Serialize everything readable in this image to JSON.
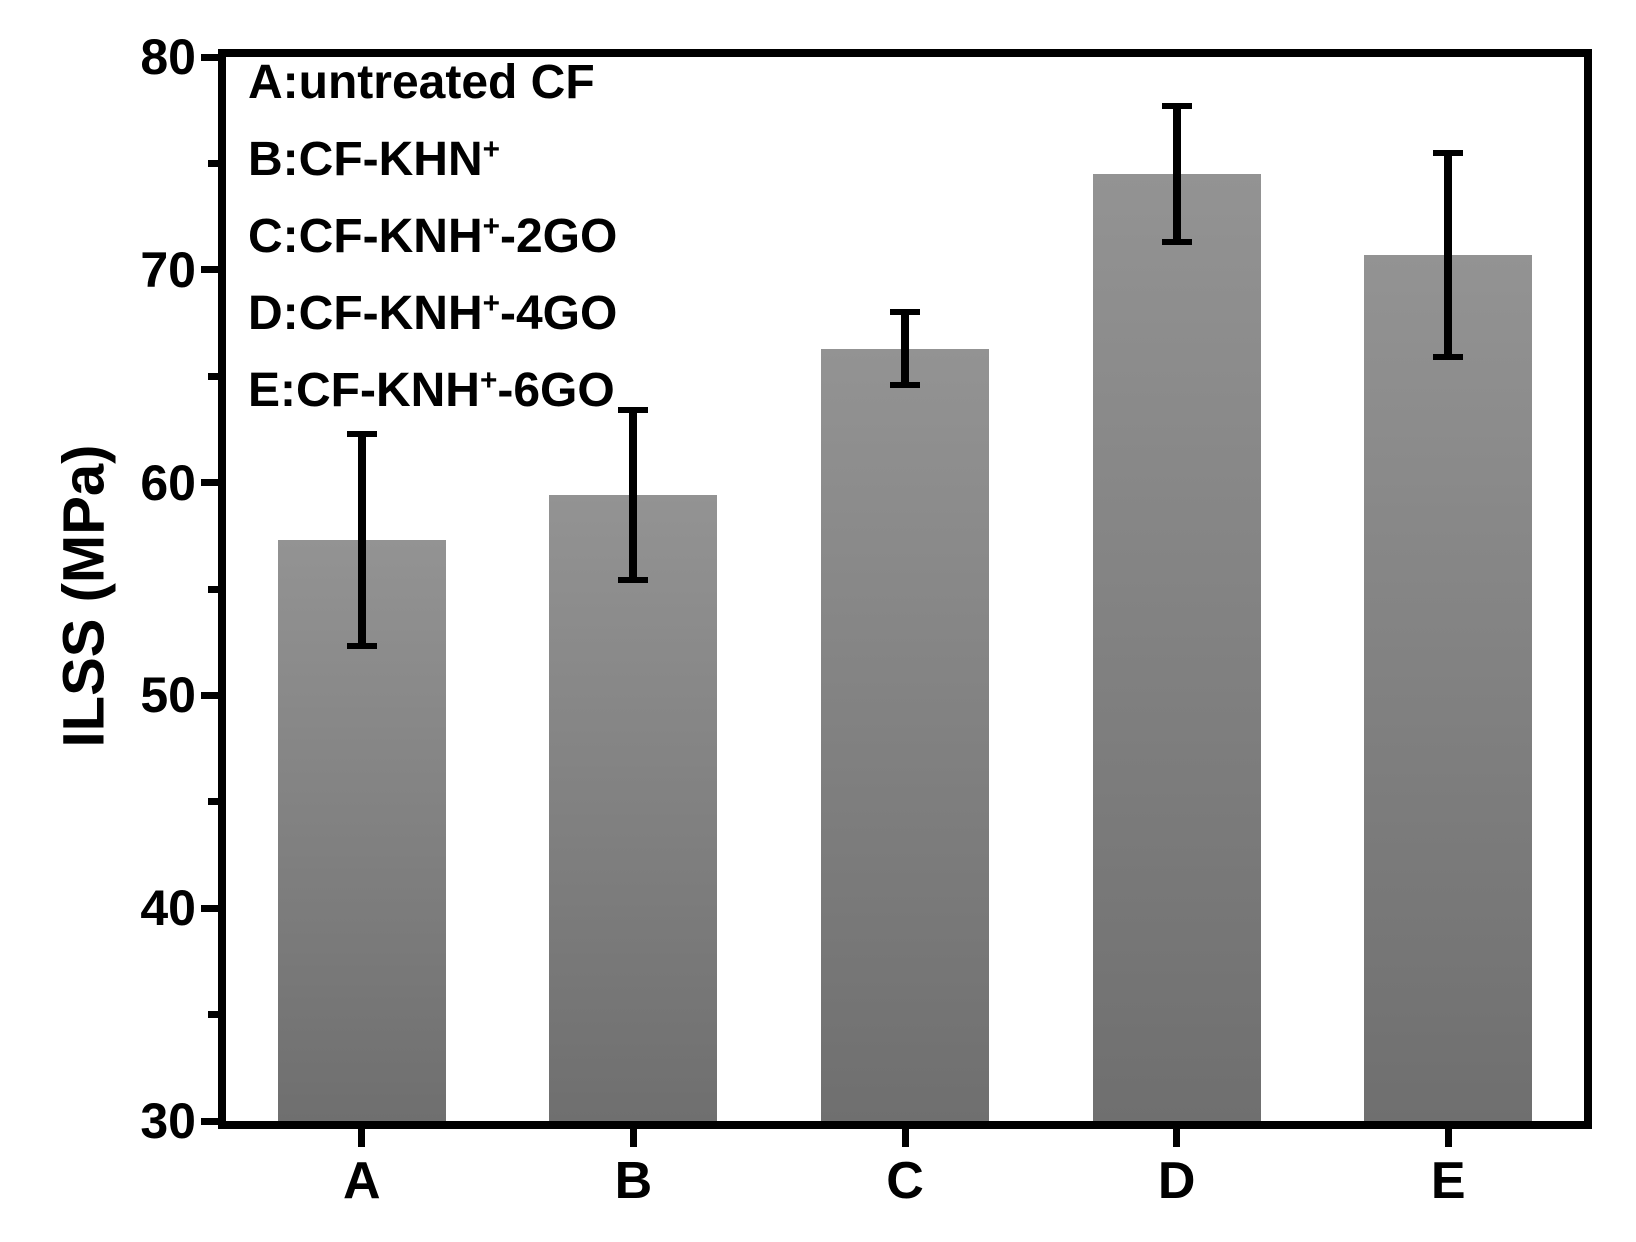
{
  "chart_data": {
    "type": "bar",
    "title": "",
    "xlabel": "",
    "ylabel": "ILSS (MPa)",
    "categories": [
      "A",
      "B",
      "C",
      "D",
      "E"
    ],
    "values": [
      57.3,
      59.4,
      66.3,
      74.5,
      70.7
    ],
    "errors": [
      5.0,
      4.0,
      1.7,
      3.2,
      4.8
    ],
    "ylim": [
      30,
      80
    ],
    "ytick_major_step": 10,
    "ytick_minor_step": 5,
    "ytick_labels": [
      "30",
      "40",
      "50",
      "60",
      "70",
      "80"
    ],
    "grid": false,
    "legend_position": "top-left",
    "bar_color_top": "#939393",
    "bar_color_bottom": "#6f6f6f",
    "axis_color": "#000000",
    "background_color": "#ffffff"
  },
  "legend": {
    "items": [
      {
        "pre": "A:untreated CF",
        "sup": "",
        "post": ""
      },
      {
        "pre": "B:CF-KHN",
        "sup": "+",
        "post": ""
      },
      {
        "pre": "C:CF-KNH",
        "sup": "+",
        "post": "-2GO"
      },
      {
        "pre": "D:CF-KNH",
        "sup": "+",
        "post": "-4GO"
      },
      {
        "pre": "E:CF-KNH",
        "sup": "+",
        "post": "-6GO"
      }
    ]
  }
}
